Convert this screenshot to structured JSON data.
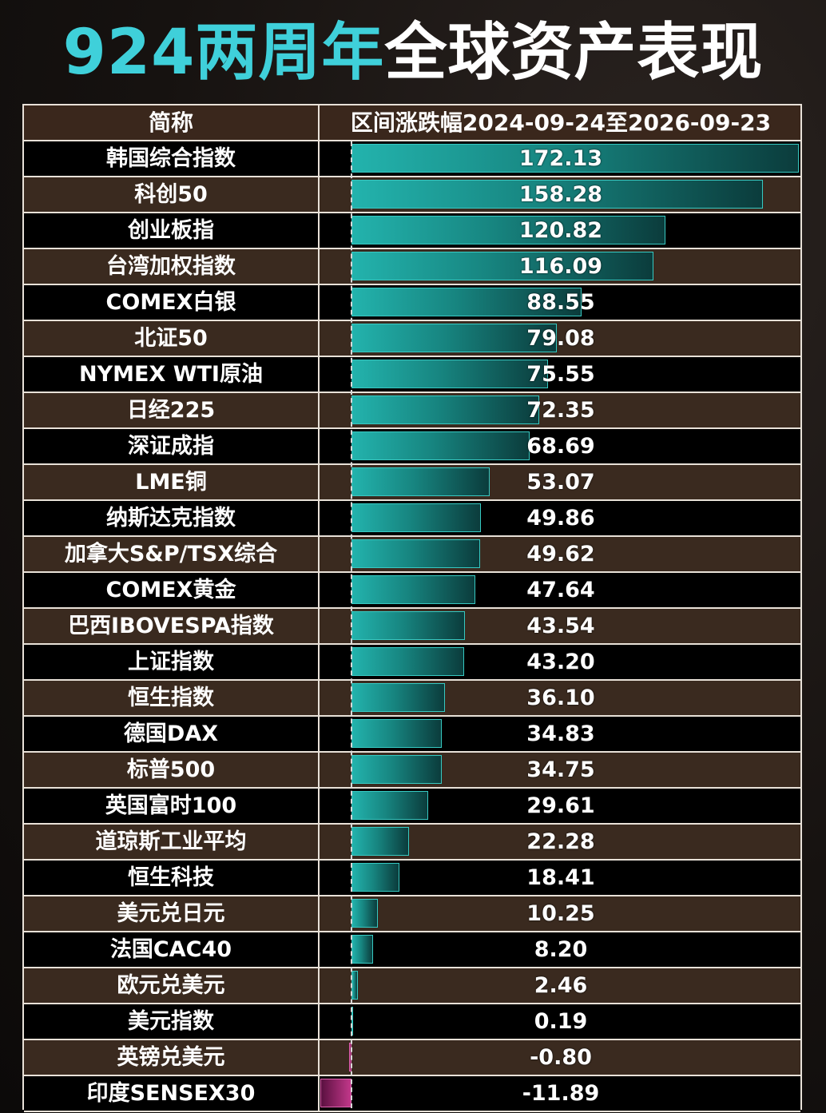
{
  "title": {
    "part1": "924两周年",
    "part2": "全球资产表现"
  },
  "header": {
    "col_name": "简称",
    "col_value": "区间涨跌幅2024-09-24至2026-09-23"
  },
  "colors": {
    "accent": "#3fd0da",
    "positive_bar": "#1a9a94",
    "negative_bar": "#c2388a",
    "row_dark": "#000000",
    "row_brown": "#3a2a1f"
  },
  "chart_data": {
    "type": "bar",
    "orientation": "horizontal",
    "title": "",
    "xlabel": "区间涨跌幅2024-09-24至2026-09-23",
    "ylabel": "简称",
    "categories": [
      "韩国综合指数",
      "科创50",
      "创业板指",
      "台湾加权指数",
      "COMEX白银",
      "北证50",
      "NYMEX WTI原油",
      "日经225",
      "深证成指",
      "LME铜",
      "纳斯达克指数",
      "加拿大S&P/TSX综合",
      "COMEX黄金",
      "巴西IBOVESPA指数",
      "上证指数",
      "恒生指数",
      "德国DAX",
      "标普500",
      "英国富时100",
      "道琼斯工业平均",
      "恒生科技",
      "美元兑日元",
      "法国CAC40",
      "欧元兑美元",
      "美元指数",
      "英镑兑美元",
      "印度SENSEX30"
    ],
    "values": [
      172.13,
      158.28,
      120.82,
      116.09,
      88.55,
      79.08,
      75.55,
      72.35,
      68.69,
      53.07,
      49.86,
      49.62,
      47.64,
      43.54,
      43.2,
      36.1,
      34.83,
      34.75,
      29.61,
      22.28,
      18.41,
      10.25,
      8.2,
      2.46,
      0.19,
      -0.8,
      -11.89
    ],
    "labels": [
      "172.13",
      "158.28",
      "120.82",
      "116.09",
      "88.55",
      "79.08",
      "75.55",
      "72.35",
      "68.69",
      "53.07",
      "49.86",
      "49.62",
      "47.64",
      "43.54",
      "43.20",
      "36.10",
      "34.83",
      "34.75",
      "29.61",
      "22.28",
      "18.41",
      "10.25",
      "8.20",
      "2.46",
      "0.19",
      "-0.80",
      "-11.89"
    ],
    "xlim": [
      -11.89,
      172.13
    ],
    "grid": false
  }
}
